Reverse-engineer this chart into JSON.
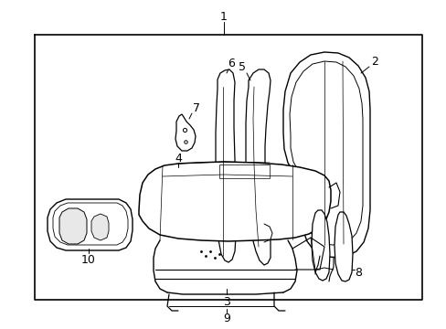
{
  "background_color": "#ffffff",
  "border_color": "#000000",
  "line_color": "#000000",
  "figure_width": 4.89,
  "figure_height": 3.6,
  "dpi": 100
}
